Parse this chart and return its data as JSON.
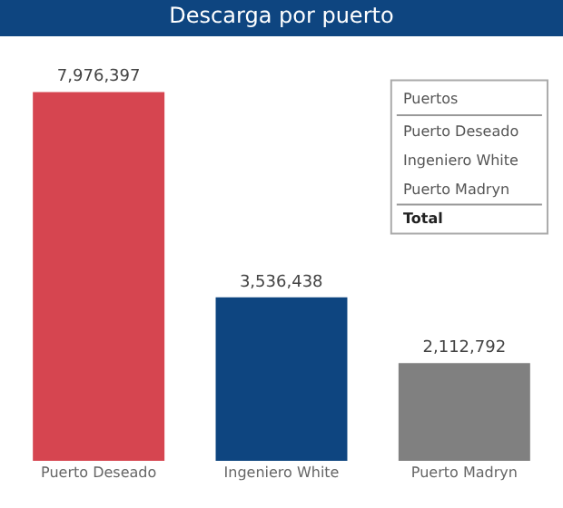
{
  "chart_data": {
    "type": "bar",
    "title": "Descarga por puerto",
    "categories": [
      "Puerto Deseado",
      "Ingeniero White",
      "Puerto Madryn"
    ],
    "values": [
      7976397,
      3536438,
      2112792
    ],
    "colors": [
      "#d64550",
      "#0e4580",
      "#808080"
    ],
    "value_labels": [
      "7,976,397",
      "3,536,438",
      "2,112,792"
    ],
    "legend": false,
    "annotations": [
      "Puertos",
      "Puerto Deseado",
      "Ingeniero White",
      "Puerto Madryn",
      "Total"
    ]
  }
}
